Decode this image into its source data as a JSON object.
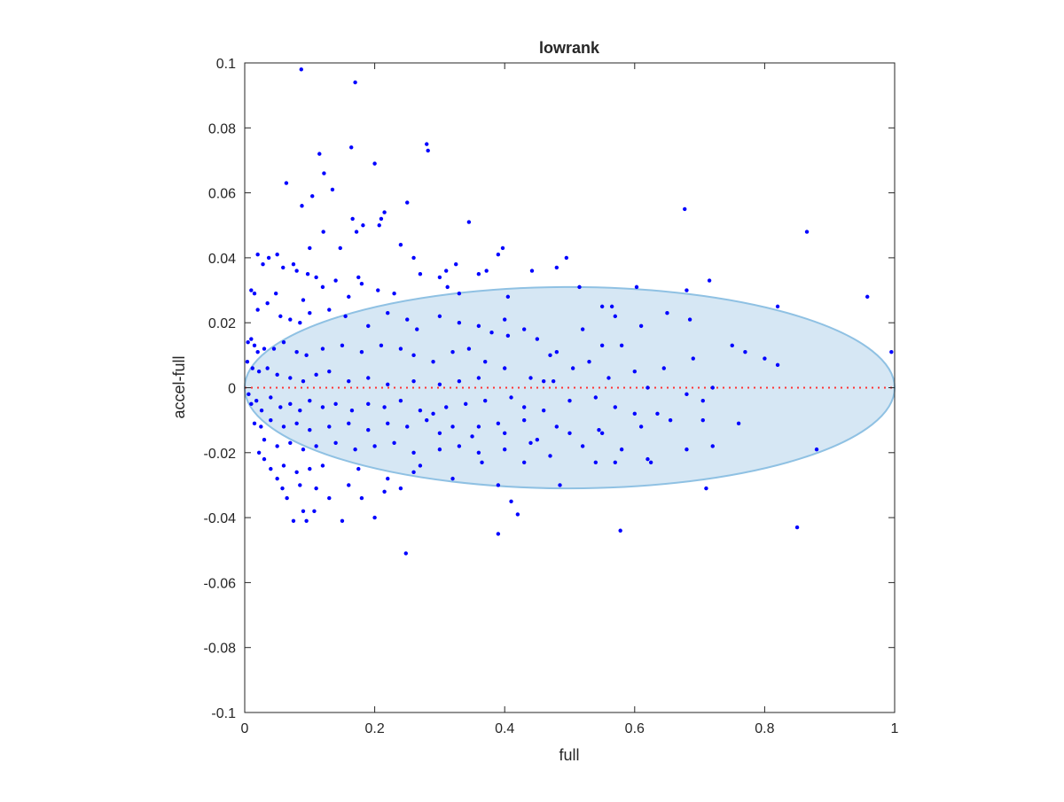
{
  "chart_data": {
    "type": "scatter",
    "title": "lowrank",
    "xlabel": "full",
    "ylabel": "accel-full",
    "xlim": [
      0,
      1
    ],
    "ylim": [
      -0.1,
      0.1
    ],
    "xticks": [
      0,
      0.2,
      0.4,
      0.6,
      0.8,
      1
    ],
    "xtick_labels": [
      "0",
      "0.2",
      "0.4",
      "0.6",
      "0.8",
      "1"
    ],
    "yticks": [
      -0.1,
      -0.08,
      -0.06,
      -0.04,
      -0.02,
      0,
      0.02,
      0.04,
      0.06,
      0.08,
      0.1
    ],
    "ytick_labels": [
      "-0.1",
      "-0.08",
      "-0.06",
      "-0.04",
      "-0.02",
      "0",
      "0.02",
      "0.04",
      "0.06",
      "0.08",
      "0.1"
    ],
    "grid": false,
    "box": true,
    "reference_line": {
      "y": 0,
      "style": "dotted",
      "color": "#ff3333"
    },
    "ellipse": {
      "cx": 0.5,
      "cy": 0,
      "rx": 0.5,
      "ry": 0.031,
      "fill": "#d6e7f4",
      "stroke": "#8fc1e3"
    },
    "points_color": "#0000ff",
    "points": [
      [
        0.087,
        0.098
      ],
      [
        0.17,
        0.094
      ],
      [
        0.28,
        0.075
      ],
      [
        0.282,
        0.073
      ],
      [
        0.164,
        0.074
      ],
      [
        0.115,
        0.072
      ],
      [
        0.2,
        0.069
      ],
      [
        0.122,
        0.066
      ],
      [
        0.064,
        0.063
      ],
      [
        0.135,
        0.061
      ],
      [
        0.104,
        0.059
      ],
      [
        0.088,
        0.056
      ],
      [
        0.25,
        0.057
      ],
      [
        0.215,
        0.054
      ],
      [
        0.21,
        0.052
      ],
      [
        0.345,
        0.051
      ],
      [
        0.166,
        0.052
      ],
      [
        0.182,
        0.05
      ],
      [
        0.207,
        0.05
      ],
      [
        0.172,
        0.048
      ],
      [
        0.121,
        0.048
      ],
      [
        0.24,
        0.044
      ],
      [
        0.1,
        0.043
      ],
      [
        0.147,
        0.043
      ],
      [
        0.26,
        0.04
      ],
      [
        0.397,
        0.043
      ],
      [
        0.39,
        0.041
      ],
      [
        0.495,
        0.04
      ],
      [
        0.48,
        0.037
      ],
      [
        0.442,
        0.036
      ],
      [
        0.372,
        0.036
      ],
      [
        0.36,
        0.035
      ],
      [
        0.02,
        0.041
      ],
      [
        0.037,
        0.04
      ],
      [
        0.05,
        0.041
      ],
      [
        0.028,
        0.038
      ],
      [
        0.059,
        0.037
      ],
      [
        0.075,
        0.038
      ],
      [
        0.08,
        0.036
      ],
      [
        0.097,
        0.035
      ],
      [
        0.11,
        0.034
      ],
      [
        0.14,
        0.033
      ],
      [
        0.12,
        0.031
      ],
      [
        0.175,
        0.034
      ],
      [
        0.18,
        0.032
      ],
      [
        0.27,
        0.035
      ],
      [
        0.3,
        0.034
      ],
      [
        0.31,
        0.036
      ],
      [
        0.325,
        0.038
      ],
      [
        0.312,
        0.031
      ],
      [
        0.33,
        0.029
      ],
      [
        0.205,
        0.03
      ],
      [
        0.23,
        0.029
      ],
      [
        0.16,
        0.028
      ],
      [
        0.09,
        0.027
      ],
      [
        0.048,
        0.029
      ],
      [
        0.015,
        0.029
      ],
      [
        0.01,
        0.03
      ],
      [
        0.02,
        0.024
      ],
      [
        0.035,
        0.026
      ],
      [
        0.055,
        0.022
      ],
      [
        0.07,
        0.021
      ],
      [
        0.085,
        0.02
      ],
      [
        0.1,
        0.023
      ],
      [
        0.13,
        0.024
      ],
      [
        0.155,
        0.022
      ],
      [
        0.19,
        0.019
      ],
      [
        0.22,
        0.023
      ],
      [
        0.25,
        0.021
      ],
      [
        0.265,
        0.018
      ],
      [
        0.3,
        0.022
      ],
      [
        0.33,
        0.02
      ],
      [
        0.36,
        0.019
      ],
      [
        0.38,
        0.017
      ],
      [
        0.4,
        0.021
      ],
      [
        0.405,
        0.016
      ],
      [
        0.45,
        0.015
      ],
      [
        0.43,
        0.018
      ],
      [
        0.405,
        0.028
      ],
      [
        0.515,
        0.031
      ],
      [
        0.603,
        0.031
      ],
      [
        0.677,
        0.055
      ],
      [
        0.865,
        0.048
      ],
      [
        0.715,
        0.033
      ],
      [
        0.68,
        0.03
      ],
      [
        0.958,
        0.028
      ],
      [
        0.82,
        0.025
      ],
      [
        0.55,
        0.025
      ],
      [
        0.565,
        0.025
      ],
      [
        0.61,
        0.019
      ],
      [
        0.65,
        0.023
      ],
      [
        0.685,
        0.021
      ],
      [
        0.75,
        0.013
      ],
      [
        0.77,
        0.011
      ],
      [
        0.8,
        0.009
      ],
      [
        0.82,
        0.007
      ],
      [
        0.72,
        0
      ],
      [
        0.645,
        0.006
      ],
      [
        0.6,
        0.005
      ],
      [
        0.58,
        0.013
      ],
      [
        0.55,
        0.013
      ],
      [
        0.53,
        0.008
      ],
      [
        0.505,
        0.006
      ],
      [
        0.475,
        0.002
      ],
      [
        0.46,
        0.002
      ],
      [
        0.44,
        0.003
      ],
      [
        0.4,
        0.006
      ],
      [
        0.37,
        0.008
      ],
      [
        0.345,
        0.012
      ],
      [
        0.32,
        0.011
      ],
      [
        0.29,
        0.008
      ],
      [
        0.26,
        0.01
      ],
      [
        0.24,
        0.012
      ],
      [
        0.21,
        0.013
      ],
      [
        0.18,
        0.011
      ],
      [
        0.15,
        0.013
      ],
      [
        0.12,
        0.012
      ],
      [
        0.095,
        0.01
      ],
      [
        0.08,
        0.011
      ],
      [
        0.06,
        0.014
      ],
      [
        0.045,
        0.012
      ],
      [
        0.03,
        0.012
      ],
      [
        0.02,
        0.011
      ],
      [
        0.015,
        0.013
      ],
      [
        0.01,
        0.015
      ],
      [
        0.005,
        0.014
      ],
      [
        0.004,
        0.008
      ],
      [
        0.012,
        0.006
      ],
      [
        0.022,
        0.005
      ],
      [
        0.035,
        0.006
      ],
      [
        0.05,
        0.004
      ],
      [
        0.07,
        0.003
      ],
      [
        0.09,
        0.002
      ],
      [
        0.11,
        0.004
      ],
      [
        0.13,
        0.005
      ],
      [
        0.16,
        0.002
      ],
      [
        0.19,
        0.003
      ],
      [
        0.22,
        0.001
      ],
      [
        0.26,
        0.002
      ],
      [
        0.3,
        0.001
      ],
      [
        0.33,
        0.002
      ],
      [
        0.36,
        0.003
      ],
      [
        0.995,
        0.011
      ],
      [
        0.69,
        0.009
      ],
      [
        0.57,
        0.022
      ],
      [
        0.52,
        0.018
      ],
      [
        0.48,
        0.011
      ],
      [
        0.47,
        0.01
      ],
      [
        0.56,
        0.003
      ],
      [
        0.62,
        0
      ],
      [
        0.68,
        -0.002
      ],
      [
        0.705,
        -0.004
      ],
      [
        0.006,
        -0.002
      ],
      [
        0.01,
        -0.005
      ],
      [
        0.018,
        -0.004
      ],
      [
        0.026,
        -0.007
      ],
      [
        0.04,
        -0.003
      ],
      [
        0.055,
        -0.006
      ],
      [
        0.07,
        -0.005
      ],
      [
        0.085,
        -0.007
      ],
      [
        0.1,
        -0.004
      ],
      [
        0.12,
        -0.006
      ],
      [
        0.14,
        -0.005
      ],
      [
        0.165,
        -0.007
      ],
      [
        0.19,
        -0.005
      ],
      [
        0.215,
        -0.006
      ],
      [
        0.24,
        -0.004
      ],
      [
        0.27,
        -0.007
      ],
      [
        0.29,
        -0.008
      ],
      [
        0.31,
        -0.006
      ],
      [
        0.34,
        -0.005
      ],
      [
        0.37,
        -0.004
      ],
      [
        0.41,
        -0.003
      ],
      [
        0.43,
        -0.006
      ],
      [
        0.46,
        -0.007
      ],
      [
        0.5,
        -0.004
      ],
      [
        0.54,
        -0.003
      ],
      [
        0.57,
        -0.006
      ],
      [
        0.6,
        -0.008
      ],
      [
        0.635,
        -0.008
      ],
      [
        0.655,
        -0.01
      ],
      [
        0.705,
        -0.01
      ],
      [
        0.76,
        -0.011
      ],
      [
        0.61,
        -0.012
      ],
      [
        0.545,
        -0.013
      ],
      [
        0.48,
        -0.012
      ],
      [
        0.43,
        -0.01
      ],
      [
        0.39,
        -0.011
      ],
      [
        0.36,
        -0.012
      ],
      [
        0.32,
        -0.012
      ],
      [
        0.28,
        -0.01
      ],
      [
        0.25,
        -0.012
      ],
      [
        0.22,
        -0.011
      ],
      [
        0.19,
        -0.013
      ],
      [
        0.16,
        -0.011
      ],
      [
        0.13,
        -0.012
      ],
      [
        0.1,
        -0.013
      ],
      [
        0.08,
        -0.011
      ],
      [
        0.06,
        -0.012
      ],
      [
        0.04,
        -0.01
      ],
      [
        0.025,
        -0.012
      ],
      [
        0.015,
        -0.011
      ],
      [
        0.03,
        -0.016
      ],
      [
        0.05,
        -0.018
      ],
      [
        0.07,
        -0.017
      ],
      [
        0.09,
        -0.019
      ],
      [
        0.11,
        -0.018
      ],
      [
        0.14,
        -0.017
      ],
      [
        0.17,
        -0.019
      ],
      [
        0.2,
        -0.018
      ],
      [
        0.23,
        -0.017
      ],
      [
        0.26,
        -0.02
      ],
      [
        0.3,
        -0.019
      ],
      [
        0.33,
        -0.018
      ],
      [
        0.36,
        -0.02
      ],
      [
        0.4,
        -0.019
      ],
      [
        0.44,
        -0.017
      ],
      [
        0.47,
        -0.021
      ],
      [
        0.52,
        -0.018
      ],
      [
        0.58,
        -0.019
      ],
      [
        0.625,
        -0.023
      ],
      [
        0.68,
        -0.019
      ],
      [
        0.72,
        -0.018
      ],
      [
        0.88,
        -0.019
      ],
      [
        0.85,
        -0.043
      ],
      [
        0.578,
        -0.044
      ],
      [
        0.39,
        -0.045
      ],
      [
        0.248,
        -0.051
      ],
      [
        0.42,
        -0.039
      ],
      [
        0.41,
        -0.035
      ],
      [
        0.39,
        -0.03
      ],
      [
        0.485,
        -0.03
      ],
      [
        0.54,
        -0.023
      ],
      [
        0.57,
        -0.023
      ],
      [
        0.62,
        -0.022
      ],
      [
        0.71,
        -0.031
      ],
      [
        0.43,
        -0.023
      ],
      [
        0.365,
        -0.023
      ],
      [
        0.32,
        -0.028
      ],
      [
        0.26,
        -0.026
      ],
      [
        0.22,
        -0.028
      ],
      [
        0.2,
        -0.04
      ],
      [
        0.18,
        -0.034
      ],
      [
        0.16,
        -0.03
      ],
      [
        0.15,
        -0.041
      ],
      [
        0.13,
        -0.034
      ],
      [
        0.11,
        -0.031
      ],
      [
        0.09,
        -0.038
      ],
      [
        0.095,
        -0.041
      ],
      [
        0.075,
        -0.041
      ],
      [
        0.065,
        -0.034
      ],
      [
        0.058,
        -0.031
      ],
      [
        0.05,
        -0.028
      ],
      [
        0.04,
        -0.025
      ],
      [
        0.03,
        -0.022
      ],
      [
        0.022,
        -0.02
      ],
      [
        0.06,
        -0.024
      ],
      [
        0.08,
        -0.026
      ],
      [
        0.1,
        -0.025
      ],
      [
        0.12,
        -0.024
      ],
      [
        0.085,
        -0.03
      ],
      [
        0.107,
        -0.038
      ],
      [
        0.175,
        -0.025
      ],
      [
        0.215,
        -0.032
      ],
      [
        0.24,
        -0.031
      ],
      [
        0.27,
        -0.024
      ],
      [
        0.35,
        -0.015
      ],
      [
        0.4,
        -0.014
      ],
      [
        0.45,
        -0.016
      ],
      [
        0.5,
        -0.014
      ],
      [
        0.55,
        -0.014
      ],
      [
        0.3,
        -0.014
      ]
    ]
  }
}
